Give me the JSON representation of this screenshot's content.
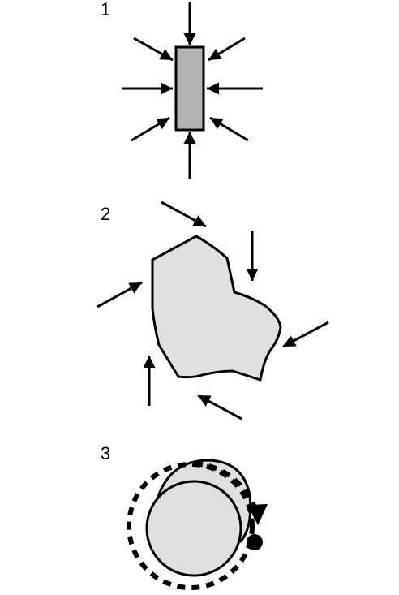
{
  "panels": [
    {
      "number": "1"
    },
    {
      "number": "2"
    },
    {
      "number": "3"
    }
  ],
  "colors": {
    "ink": "#000000",
    "rod_fill": "#b3b3b3",
    "blob_fill": "#e0e0e0",
    "disk_fill": "#e0e0e0",
    "background": "#ffffff"
  }
}
